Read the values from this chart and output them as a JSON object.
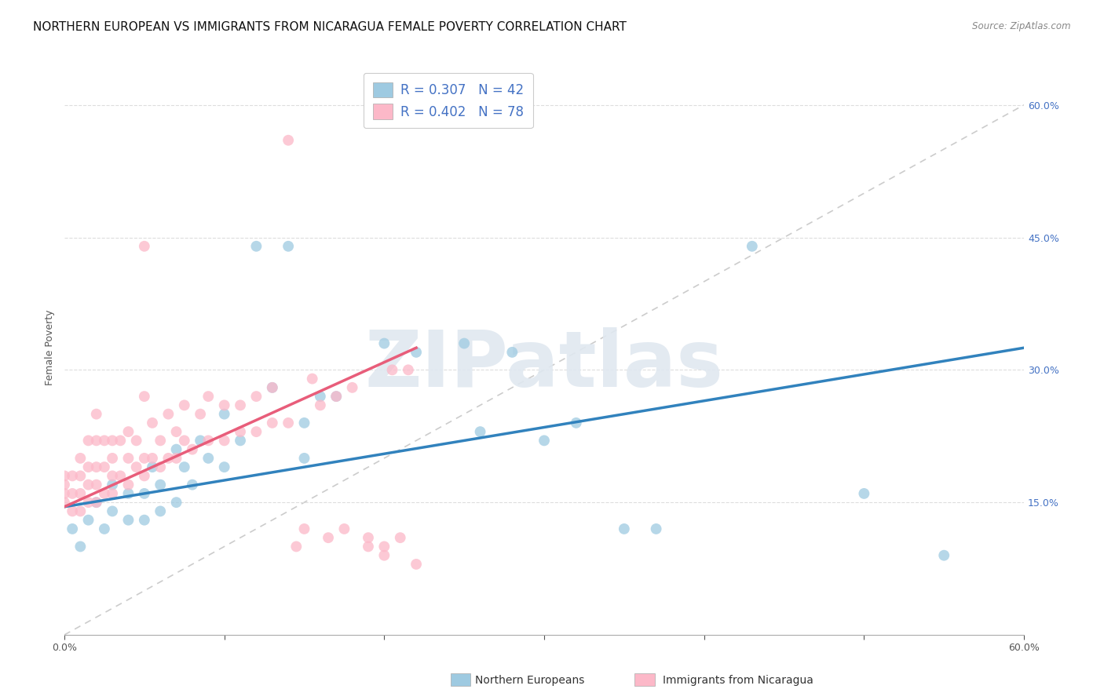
{
  "title": "NORTHERN EUROPEAN VS IMMIGRANTS FROM NICARAGUA FEMALE POVERTY CORRELATION CHART",
  "source": "Source: ZipAtlas.com",
  "ylabel": "Female Poverty",
  "xmin": 0.0,
  "xmax": 0.6,
  "ymin": 0.0,
  "ymax": 0.65,
  "ytick_vals": [
    0.15,
    0.3,
    0.45,
    0.6
  ],
  "ytick_labels_right": [
    "15.0%",
    "30.0%",
    "45.0%",
    "60.0%"
  ],
  "R_blue": 0.307,
  "N_blue": 42,
  "R_pink": 0.402,
  "N_pink": 78,
  "blue_color": "#9ecae1",
  "pink_color": "#fcb8c8",
  "blue_line_color": "#3182bd",
  "pink_line_color": "#e85d7a",
  "ref_line_color": "#cccccc",
  "background_color": "#ffffff",
  "grid_color": "#dddddd",
  "blue_scatter_x": [
    0.005,
    0.01,
    0.015,
    0.02,
    0.025,
    0.03,
    0.03,
    0.04,
    0.04,
    0.05,
    0.05,
    0.055,
    0.06,
    0.06,
    0.07,
    0.07,
    0.075,
    0.08,
    0.085,
    0.09,
    0.1,
    0.1,
    0.11,
    0.12,
    0.13,
    0.14,
    0.15,
    0.15,
    0.16,
    0.17,
    0.2,
    0.22,
    0.25,
    0.26,
    0.28,
    0.3,
    0.32,
    0.35,
    0.37,
    0.43,
    0.5,
    0.55
  ],
  "blue_scatter_y": [
    0.12,
    0.1,
    0.13,
    0.15,
    0.12,
    0.14,
    0.17,
    0.13,
    0.16,
    0.13,
    0.16,
    0.19,
    0.14,
    0.17,
    0.15,
    0.21,
    0.19,
    0.17,
    0.22,
    0.2,
    0.19,
    0.25,
    0.22,
    0.44,
    0.28,
    0.44,
    0.2,
    0.24,
    0.27,
    0.27,
    0.33,
    0.32,
    0.33,
    0.23,
    0.32,
    0.22,
    0.24,
    0.12,
    0.12,
    0.44,
    0.16,
    0.09
  ],
  "pink_scatter_x": [
    0.0,
    0.0,
    0.0,
    0.0,
    0.005,
    0.005,
    0.005,
    0.01,
    0.01,
    0.01,
    0.01,
    0.015,
    0.015,
    0.015,
    0.015,
    0.02,
    0.02,
    0.02,
    0.02,
    0.02,
    0.025,
    0.025,
    0.025,
    0.03,
    0.03,
    0.03,
    0.03,
    0.035,
    0.035,
    0.04,
    0.04,
    0.04,
    0.045,
    0.045,
    0.05,
    0.05,
    0.05,
    0.055,
    0.055,
    0.06,
    0.06,
    0.065,
    0.065,
    0.07,
    0.07,
    0.075,
    0.075,
    0.08,
    0.085,
    0.09,
    0.09,
    0.1,
    0.1,
    0.11,
    0.11,
    0.12,
    0.12,
    0.13,
    0.13,
    0.14,
    0.145,
    0.15,
    0.155,
    0.16,
    0.165,
    0.17,
    0.175,
    0.18,
    0.19,
    0.19,
    0.2,
    0.2,
    0.205,
    0.21,
    0.215,
    0.22,
    0.05,
    0.14
  ],
  "pink_scatter_y": [
    0.15,
    0.16,
    0.17,
    0.18,
    0.14,
    0.16,
    0.18,
    0.14,
    0.16,
    0.18,
    0.2,
    0.15,
    0.17,
    0.19,
    0.22,
    0.15,
    0.17,
    0.19,
    0.22,
    0.25,
    0.16,
    0.19,
    0.22,
    0.16,
    0.18,
    0.2,
    0.22,
    0.18,
    0.22,
    0.17,
    0.2,
    0.23,
    0.19,
    0.22,
    0.18,
    0.2,
    0.27,
    0.2,
    0.24,
    0.19,
    0.22,
    0.2,
    0.25,
    0.2,
    0.23,
    0.22,
    0.26,
    0.21,
    0.25,
    0.22,
    0.27,
    0.22,
    0.26,
    0.23,
    0.26,
    0.23,
    0.27,
    0.24,
    0.28,
    0.24,
    0.1,
    0.12,
    0.29,
    0.26,
    0.11,
    0.27,
    0.12,
    0.28,
    0.1,
    0.11,
    0.09,
    0.1,
    0.3,
    0.11,
    0.3,
    0.08,
    0.44,
    0.56
  ],
  "blue_trend_x": [
    0.0,
    0.6
  ],
  "blue_trend_y": [
    0.145,
    0.325
  ],
  "pink_trend_x": [
    0.0,
    0.22
  ],
  "pink_trend_y": [
    0.145,
    0.325
  ],
  "ref_line_x": [
    0.0,
    0.6
  ],
  "ref_line_y": [
    0.0,
    0.6
  ],
  "watermark_text": "ZIPatlas",
  "title_fontsize": 11,
  "axis_label_fontsize": 9,
  "tick_fontsize": 9,
  "legend_label_blue": "Northern Europeans",
  "legend_label_pink": "Immigrants from Nicaragua"
}
